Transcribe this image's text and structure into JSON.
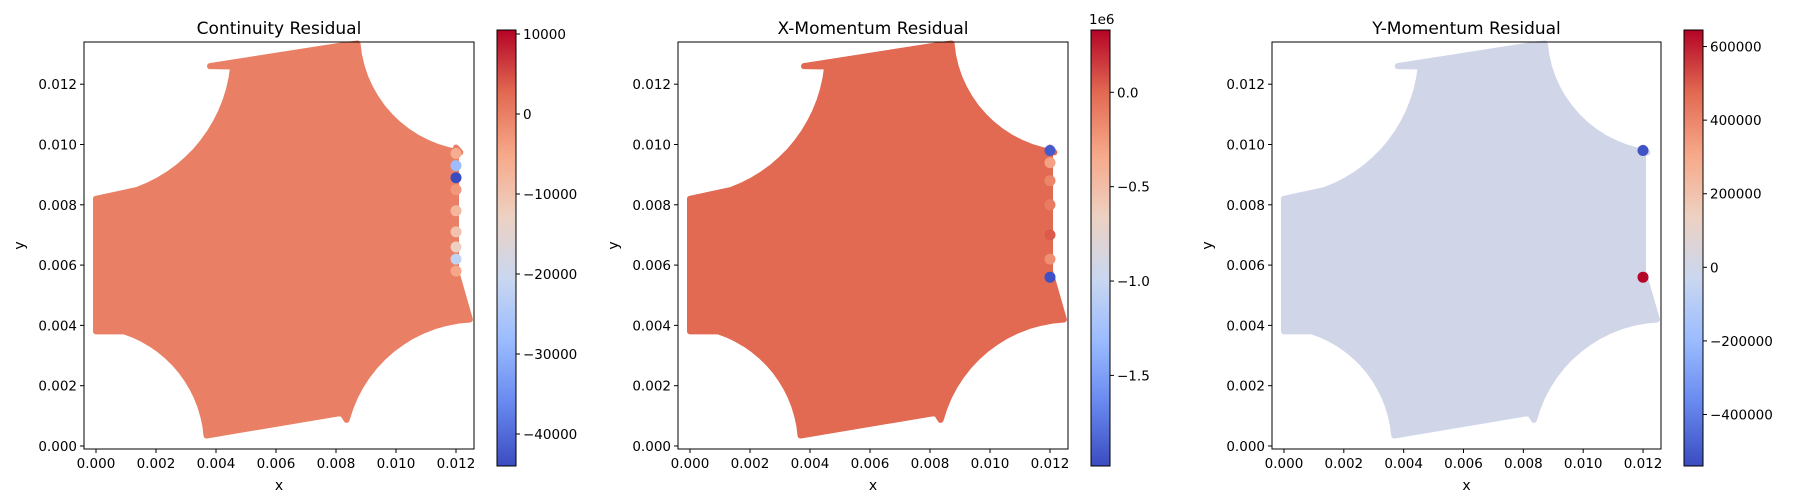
{
  "colors": {
    "cmap": [
      "#3b4cc0",
      "#6788ee",
      "#9abbff",
      "#c9d7f0",
      "#edd1c2",
      "#f7a889",
      "#e26952",
      "#b40426"
    ]
  },
  "chart_data": [
    {
      "type": "scatter",
      "title": "Continuity Residual",
      "xlabel": "x",
      "ylabel": "y",
      "xlim": [
        -0.0004,
        0.0126
      ],
      "ylim": [
        -0.0001,
        0.0134
      ],
      "xticks": [
        "0.000",
        "0.002",
        "0.004",
        "0.006",
        "0.008",
        "0.010",
        "0.012"
      ],
      "yticks": [
        "0.000",
        "0.002",
        "0.004",
        "0.006",
        "0.008",
        "0.010",
        "0.012"
      ],
      "colorbar": {
        "min": -44000,
        "max": 10500,
        "ticks": [
          10000,
          0,
          -10000,
          -20000,
          -30000,
          -40000
        ],
        "tick_labels": [
          "10000",
          "0",
          "−10000",
          "−20000",
          "−30000",
          "−40000"
        ],
        "offset": ""
      },
      "field_value": 0,
      "points": [
        {
          "x": 0.012,
          "y": 0.0097,
          "value": -6000
        },
        {
          "x": 0.012,
          "y": 0.0093,
          "value": -28000
        },
        {
          "x": 0.012,
          "y": 0.0089,
          "value": -44000
        },
        {
          "x": 0.012,
          "y": 0.0085,
          "value": -3000
        },
        {
          "x": 0.012,
          "y": 0.0078,
          "value": -8000
        },
        {
          "x": 0.012,
          "y": 0.0071,
          "value": -10000
        },
        {
          "x": 0.012,
          "y": 0.0066,
          "value": -13000
        },
        {
          "x": 0.012,
          "y": 0.0062,
          "value": -22000
        },
        {
          "x": 0.012,
          "y": 0.0058,
          "value": -5000
        }
      ]
    },
    {
      "type": "scatter",
      "title": "X-Momentum Residual",
      "xlabel": "x",
      "ylabel": "y",
      "xlim": [
        -0.0004,
        0.0126
      ],
      "ylim": [
        -0.0001,
        0.0134
      ],
      "xticks": [
        "0.000",
        "0.002",
        "0.004",
        "0.006",
        "0.008",
        "0.010",
        "0.012"
      ],
      "yticks": [
        "0.000",
        "0.002",
        "0.004",
        "0.006",
        "0.008",
        "0.010",
        "0.012"
      ],
      "colorbar": {
        "min": -1.98,
        "max": 0.33,
        "ticks": [
          0.0,
          -0.5,
          -1.0,
          -1.5
        ],
        "tick_labels": [
          "0.0",
          "−0.5",
          "−1.0",
          "−1.5"
        ],
        "offset": "1e6"
      },
      "field_value": 0.0,
      "points": [
        {
          "x": 0.012,
          "y": 0.0098,
          "value": -1.9
        },
        {
          "x": 0.012,
          "y": 0.0094,
          "value": -0.3
        },
        {
          "x": 0.012,
          "y": 0.0088,
          "value": -0.15
        },
        {
          "x": 0.012,
          "y": 0.008,
          "value": -0.1
        },
        {
          "x": 0.012,
          "y": 0.007,
          "value": 0.05
        },
        {
          "x": 0.012,
          "y": 0.0062,
          "value": -0.2
        },
        {
          "x": 0.012,
          "y": 0.0056,
          "value": -1.95
        }
      ]
    },
    {
      "type": "scatter",
      "title": "Y-Momentum Residual",
      "xlabel": "x",
      "ylabel": "y",
      "xlim": [
        -0.0004,
        0.0126
      ],
      "ylim": [
        -0.0001,
        0.0134
      ],
      "xticks": [
        "0.000",
        "0.002",
        "0.004",
        "0.006",
        "0.008",
        "0.010",
        "0.012"
      ],
      "yticks": [
        "0.000",
        "0.002",
        "0.004",
        "0.006",
        "0.008",
        "0.010",
        "0.012"
      ],
      "colorbar": {
        "min": -540000,
        "max": 645000,
        "ticks": [
          600000,
          400000,
          200000,
          0,
          -200000,
          -400000
        ],
        "tick_labels": [
          "600000",
          "400000",
          "200000",
          "0",
          "−200000",
          "−400000"
        ],
        "offset": ""
      },
      "field_value": 0,
      "points": [
        {
          "x": 0.012,
          "y": 0.0098,
          "value": -520000
        },
        {
          "x": 0.012,
          "y": 0.0056,
          "value": 640000
        }
      ]
    }
  ]
}
